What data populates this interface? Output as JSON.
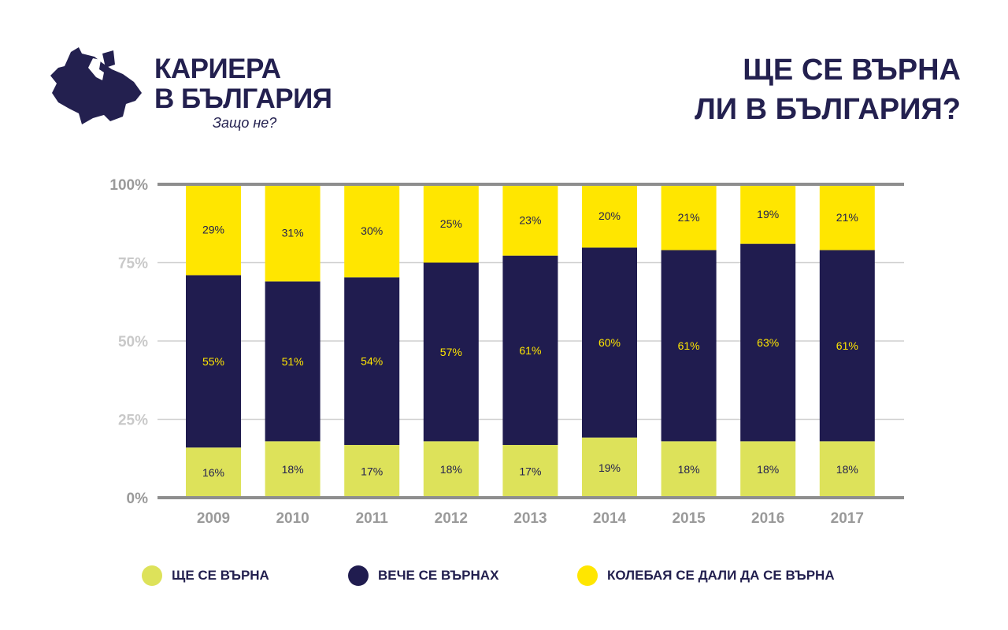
{
  "logo": {
    "line1": "КАРИЕРА",
    "line2": "В БЪЛГАРИЯ",
    "tagline": "Защо не?"
  },
  "title": {
    "line1": "ЩЕ СЕ ВЪРНА",
    "line2": "ЛИ В БЪЛГАРИЯ?"
  },
  "chart_data": {
    "type": "bar",
    "stacked": true,
    "categories": [
      "2009",
      "2010",
      "2011",
      "2012",
      "2013",
      "2014",
      "2015",
      "2016",
      "2017"
    ],
    "series": [
      {
        "name": "ЩЕ СЕ ВЪРНА",
        "color": "#dde25a",
        "label_color": "#23204f",
        "values": [
          16,
          18,
          17,
          18,
          17,
          19,
          18,
          18,
          18
        ]
      },
      {
        "name": "ВЕЧЕ СЕ ВЪРНАХ",
        "color": "#201c4f",
        "label_color": "#ffe600",
        "values": [
          55,
          51,
          54,
          57,
          61,
          60,
          61,
          63,
          61
        ]
      },
      {
        "name": "КОЛЕБАЯ СЕ ДАЛИ ДА СЕ ВЪРНА",
        "color": "#ffe600",
        "label_color": "#23204f",
        "values": [
          29,
          31,
          30,
          25,
          23,
          20,
          21,
          19,
          21
        ]
      }
    ],
    "yticks": [
      "0%",
      "25%",
      "50%",
      "75%",
      "100%"
    ],
    "ylim": [
      0,
      100
    ],
    "grid": true,
    "legend_position": "bottom"
  }
}
